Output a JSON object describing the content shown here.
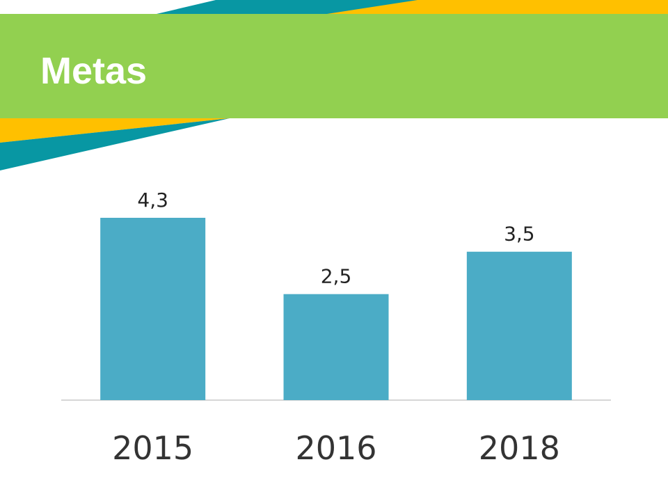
{
  "slide": {
    "title": "Metas",
    "colors": {
      "header": "#92d050",
      "stripe_teal": "#0897a3",
      "stripe_yellow": "#ffc000"
    }
  },
  "chart_data": {
    "type": "bar",
    "title": "",
    "xlabel": "",
    "ylabel": "",
    "categories": [
      "2015",
      "2016",
      "2018"
    ],
    "values": [
      4.3,
      2.5,
      3.5
    ],
    "value_labels": [
      "4,3",
      "2,5",
      "3,5"
    ],
    "ylim": [
      0,
      4.3
    ],
    "bar_color": "#4bacc6",
    "grid": false,
    "legend": "none"
  }
}
